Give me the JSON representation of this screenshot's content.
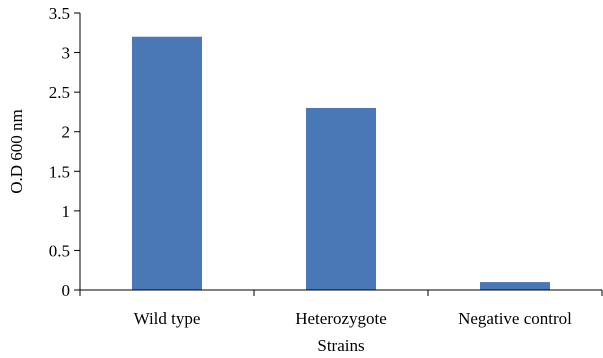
{
  "chart_data": {
    "type": "bar",
    "categories": [
      "Wild type",
      "Heterozygote",
      "Negative control"
    ],
    "values": [
      3.2,
      2.3,
      0.1
    ],
    "xlabel": "Strains",
    "ylabel": "O.D 600 nm",
    "ylim": [
      0,
      3.5
    ],
    "yticks": [
      "0",
      "0.5",
      "1",
      "1.5",
      "2",
      "2.5",
      "3",
      "3.5"
    ],
    "bar_color": "#4a78b6",
    "grid": false,
    "legend": "none"
  }
}
